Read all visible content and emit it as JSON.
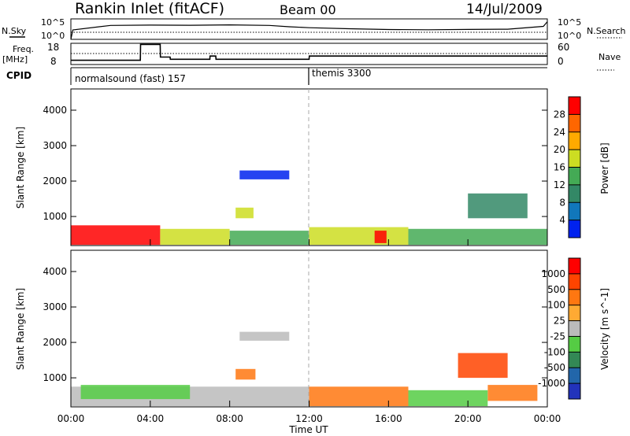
{
  "header": {
    "title": "Rankin Inlet (fitACF)",
    "beam": "Beam 00",
    "date": "14/Jul/2009"
  },
  "panel_labels": {
    "nsky": "N.Sky",
    "nsearch": "N.Search",
    "freq": "Freq.",
    "freq_unit": "[MHz]",
    "nave": "Nave",
    "cpid": "CPID",
    "nsky_ticks": [
      "10^5",
      "10^0"
    ],
    "freq_ticks": [
      "18",
      "8"
    ],
    "nave_ticks": [
      "60",
      "0"
    ]
  },
  "cpid_segments": [
    {
      "label": "normalsound (fast) 157",
      "start_hour": 0
    },
    {
      "label": "themis 3300",
      "start_hour": 12
    }
  ],
  "colors": {
    "power_scale": [
      "#0022ee",
      "#1177bb",
      "#338866",
      "#44aa55",
      "#ccdd22",
      "#ffaa00",
      "#ff6600",
      "#ff0000"
    ],
    "velocity_scale": [
      "#2233bb",
      "#2266aa",
      "#338855",
      "#55cc44",
      "#bbbbbb",
      "#ffaa33",
      "#ff7711",
      "#ff4400",
      "#ff0000"
    ]
  },
  "chart_data": [
    {
      "type": "line",
      "title": "Rankin Inlet (fitACF)",
      "xlabel": "",
      "ylabel": "",
      "x_range_hours": [
        0,
        24
      ],
      "series": [
        {
          "name": "N.Sky",
          "x": [
            0,
            0.1,
            2,
            4,
            6,
            8,
            10,
            11,
            12,
            14,
            16,
            18,
            20,
            22,
            23.8,
            24
          ],
          "values": [
            1,
            200,
            2500,
            3000,
            2800,
            3500,
            2500,
            1200,
            700,
            400,
            250,
            220,
            260,
            300,
            1500,
            20000
          ]
        },
        {
          "name": "Freq.",
          "x": [
            0,
            3.5,
            3.51,
            4.5,
            4.51,
            5,
            5.01,
            7,
            7.01,
            7.3,
            7.31,
            12,
            12.01,
            24
          ],
          "values": [
            10,
            10,
            17.5,
            17.5,
            11.5,
            11.5,
            10.5,
            10.5,
            12,
            12,
            10.5,
            10.5,
            12,
            12
          ]
        }
      ]
    },
    {
      "type": "heatmap",
      "ylabel": "Slant Range [km]",
      "colorbar_label": "Power [dB]",
      "colorbar_ticks": [
        "4",
        "8",
        "12",
        "16",
        "20",
        "24",
        "28"
      ],
      "y_ticks": [
        "1000",
        "2000",
        "3000",
        "4000"
      ],
      "ylim_km": [
        180,
        4600
      ],
      "regions": [
        {
          "x0": 0,
          "x1": 4.5,
          "y0": 200,
          "y1": 750,
          "level": 7
        },
        {
          "x0": 4.5,
          "x1": 8,
          "y0": 200,
          "y1": 650,
          "level": 4
        },
        {
          "x0": 8,
          "x1": 12,
          "y0": 200,
          "y1": 600,
          "level": 3
        },
        {
          "x0": 8.3,
          "x1": 9.2,
          "y0": 950,
          "y1": 1250,
          "level": 4
        },
        {
          "x0": 8.5,
          "x1": 11,
          "y0": 2050,
          "y1": 2300,
          "level": 0
        },
        {
          "x0": 12,
          "x1": 17,
          "y0": 200,
          "y1": 700,
          "level": 4
        },
        {
          "x0": 15.3,
          "x1": 15.9,
          "y0": 250,
          "y1": 600,
          "level": 7
        },
        {
          "x0": 17,
          "x1": 24,
          "y0": 200,
          "y1": 650,
          "level": 3
        },
        {
          "x0": 20,
          "x1": 23,
          "y0": 950,
          "y1": 1650,
          "level": 2
        }
      ]
    },
    {
      "type": "heatmap",
      "ylabel": "Slant Range [km]",
      "colorbar_label": "Velocity [m s^-1]",
      "colorbar_ticks": [
        "1000",
        "500",
        "100",
        "25",
        "-25",
        "-100",
        "-500",
        "-1000"
      ],
      "y_ticks": [
        "1000",
        "2000",
        "3000",
        "4000"
      ],
      "xlabel": "Time UT",
      "x_ticks": [
        "00:00",
        "04:00",
        "08:00",
        "12:00",
        "16:00",
        "20:00",
        "00:00"
      ],
      "ylim_km": [
        180,
        4600
      ],
      "regions": [
        {
          "x0": 0,
          "x1": 12,
          "y0": 200,
          "y1": 750,
          "level": 4
        },
        {
          "x0": 0.5,
          "x1": 6,
          "y0": 400,
          "y1": 800,
          "level": 3
        },
        {
          "x0": 8.3,
          "x1": 9.3,
          "y0": 950,
          "y1": 1250,
          "level": 6
        },
        {
          "x0": 8.5,
          "x1": 11,
          "y0": 2050,
          "y1": 2300,
          "level": 4
        },
        {
          "x0": 12,
          "x1": 17,
          "y0": 200,
          "y1": 750,
          "level": 6
        },
        {
          "x0": 17,
          "x1": 21,
          "y0": 200,
          "y1": 650,
          "level": 3
        },
        {
          "x0": 19.5,
          "x1": 22,
          "y0": 1000,
          "y1": 1700,
          "level": 7
        },
        {
          "x0": 21,
          "x1": 23.5,
          "y0": 350,
          "y1": 800,
          "level": 6
        }
      ]
    }
  ]
}
